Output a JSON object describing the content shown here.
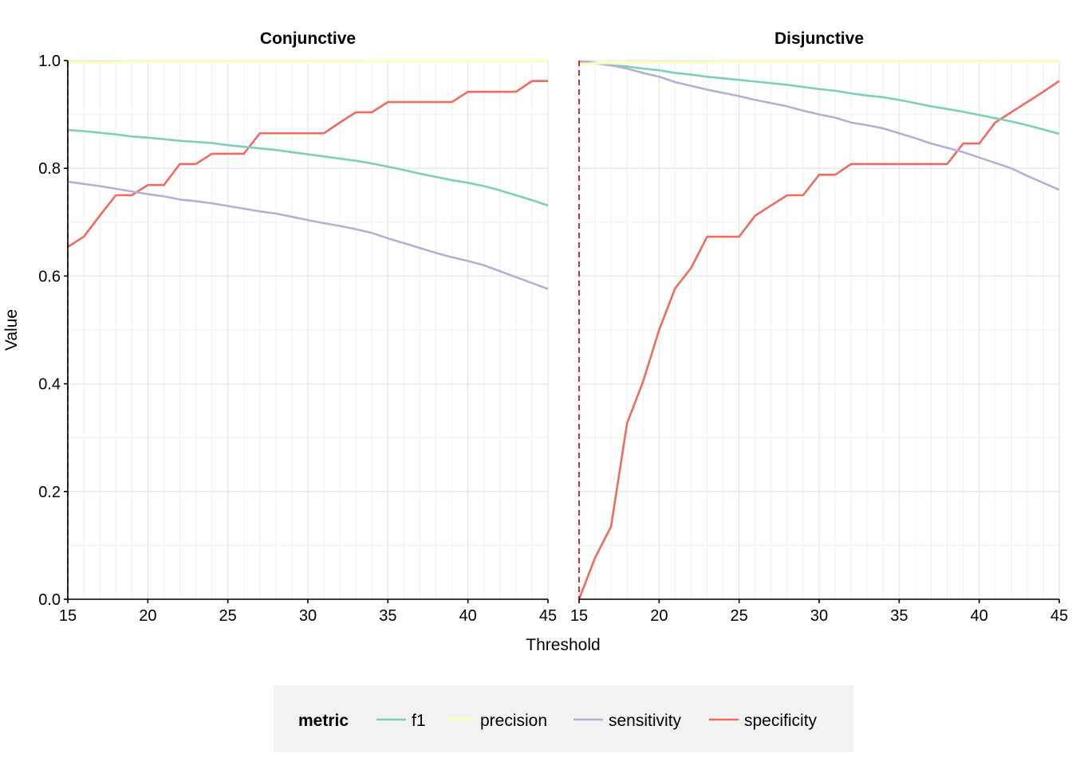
{
  "chart_data": {
    "type": "line",
    "xlabel": "Threshold",
    "ylabel": "Value",
    "ylim": [
      0,
      1
    ],
    "xlim": [
      15,
      45
    ],
    "yticks": [
      "0.0",
      "0.2",
      "0.4",
      "0.6",
      "0.8",
      "1.0"
    ],
    "xticks": [
      "15",
      "20",
      "25",
      "30",
      "35",
      "40",
      "45"
    ],
    "grid": true,
    "legend": {
      "title": "metric",
      "position": "bottom",
      "entries": [
        "f1",
        "precision",
        "sensitivity",
        "specificity"
      ]
    },
    "colors": {
      "f1": "#7fcdbb",
      "precision": "#ffffb2",
      "sensitivity": "#b3b0d6",
      "specificity": "#ef6b5e",
      "cutoff": "#cc0000"
    },
    "panels": [
      {
        "title": "Conjunctive",
        "cutoff_x": 15,
        "x": [
          15,
          16,
          17,
          18,
          19,
          20,
          21,
          22,
          23,
          24,
          25,
          26,
          27,
          28,
          29,
          30,
          31,
          32,
          33,
          34,
          35,
          36,
          37,
          38,
          39,
          40,
          41,
          42,
          43,
          44,
          45
        ],
        "series": [
          {
            "name": "f1",
            "values": [
              0.871,
              0.869,
              0.866,
              0.863,
              0.859,
              0.857,
              0.854,
              0.851,
              0.849,
              0.847,
              0.843,
              0.84,
              0.837,
              0.834,
              0.83,
              0.826,
              0.822,
              0.818,
              0.814,
              0.809,
              0.803,
              0.797,
              0.79,
              0.784,
              0.778,
              0.773,
              0.767,
              0.759,
              0.75,
              0.741,
              0.731
            ]
          },
          {
            "name": "precision",
            "values": [
              0.997,
              0.997,
              0.997,
              0.997,
              0.998,
              0.998,
              0.998,
              0.998,
              0.998,
              0.998,
              0.998,
              0.998,
              0.998,
              0.998,
              0.998,
              0.998,
              0.998,
              0.998,
              0.998,
              0.999,
              0.999,
              0.999,
              0.999,
              0.999,
              0.999,
              0.999,
              0.999,
              0.999,
              0.999,
              0.999,
              0.999
            ]
          },
          {
            "name": "sensitivity",
            "values": [
              0.775,
              0.771,
              0.767,
              0.762,
              0.757,
              0.752,
              0.748,
              0.742,
              0.739,
              0.735,
              0.73,
              0.725,
              0.72,
              0.716,
              0.71,
              0.704,
              0.698,
              0.693,
              0.687,
              0.68,
              0.67,
              0.661,
              0.652,
              0.643,
              0.635,
              0.628,
              0.62,
              0.609,
              0.598,
              0.587,
              0.576
            ]
          },
          {
            "name": "specificity",
            "values": [
              0.654,
              0.673,
              0.712,
              0.75,
              0.75,
              0.769,
              0.769,
              0.808,
              0.808,
              0.827,
              0.827,
              0.827,
              0.865,
              0.865,
              0.865,
              0.865,
              0.865,
              0.885,
              0.904,
              0.904,
              0.923,
              0.923,
              0.923,
              0.923,
              0.923,
              0.942,
              0.942,
              0.942,
              0.942,
              0.962,
              0.962
            ]
          }
        ]
      },
      {
        "title": "Disjunctive",
        "cutoff_x": 15,
        "x": [
          15,
          16,
          17,
          18,
          19,
          20,
          21,
          22,
          23,
          24,
          25,
          26,
          27,
          28,
          29,
          30,
          31,
          32,
          33,
          34,
          35,
          36,
          37,
          38,
          39,
          40,
          41,
          42,
          43,
          44,
          45
        ],
        "series": [
          {
            "name": "f1",
            "values": [
              0.997,
              0.995,
              0.991,
              0.989,
              0.985,
              0.982,
              0.977,
              0.974,
              0.97,
              0.967,
              0.964,
              0.961,
              0.958,
              0.955,
              0.951,
              0.947,
              0.944,
              0.939,
              0.935,
              0.932,
              0.927,
              0.921,
              0.915,
              0.91,
              0.905,
              0.899,
              0.893,
              0.887,
              0.88,
              0.872,
              0.864
            ]
          },
          {
            "name": "precision",
            "values": [
              0.994,
              0.995,
              0.995,
              0.996,
              0.996,
              0.997,
              0.997,
              0.997,
              0.997,
              0.998,
              0.998,
              0.998,
              0.998,
              0.998,
              0.998,
              0.998,
              0.998,
              0.998,
              0.998,
              0.998,
              0.998,
              0.998,
              0.998,
              0.998,
              0.998,
              0.998,
              0.998,
              0.998,
              0.998,
              0.998,
              0.998
            ]
          },
          {
            "name": "sensitivity",
            "values": [
              0.999,
              0.996,
              0.991,
              0.985,
              0.977,
              0.97,
              0.96,
              0.953,
              0.946,
              0.94,
              0.934,
              0.927,
              0.921,
              0.915,
              0.907,
              0.9,
              0.894,
              0.885,
              0.88,
              0.874,
              0.865,
              0.856,
              0.846,
              0.838,
              0.83,
              0.82,
              0.81,
              0.8,
              0.786,
              0.773,
              0.76
            ]
          },
          {
            "name": "specificity",
            "values": [
              0.0,
              0.077,
              0.135,
              0.327,
              0.404,
              0.5,
              0.577,
              0.615,
              0.673,
              0.673,
              0.673,
              0.712,
              0.731,
              0.75,
              0.75,
              0.788,
              0.788,
              0.808,
              0.808,
              0.808,
              0.808,
              0.808,
              0.808,
              0.808,
              0.846,
              0.846,
              0.885,
              0.904,
              0.923,
              0.942,
              0.962
            ]
          }
        ]
      }
    ]
  }
}
